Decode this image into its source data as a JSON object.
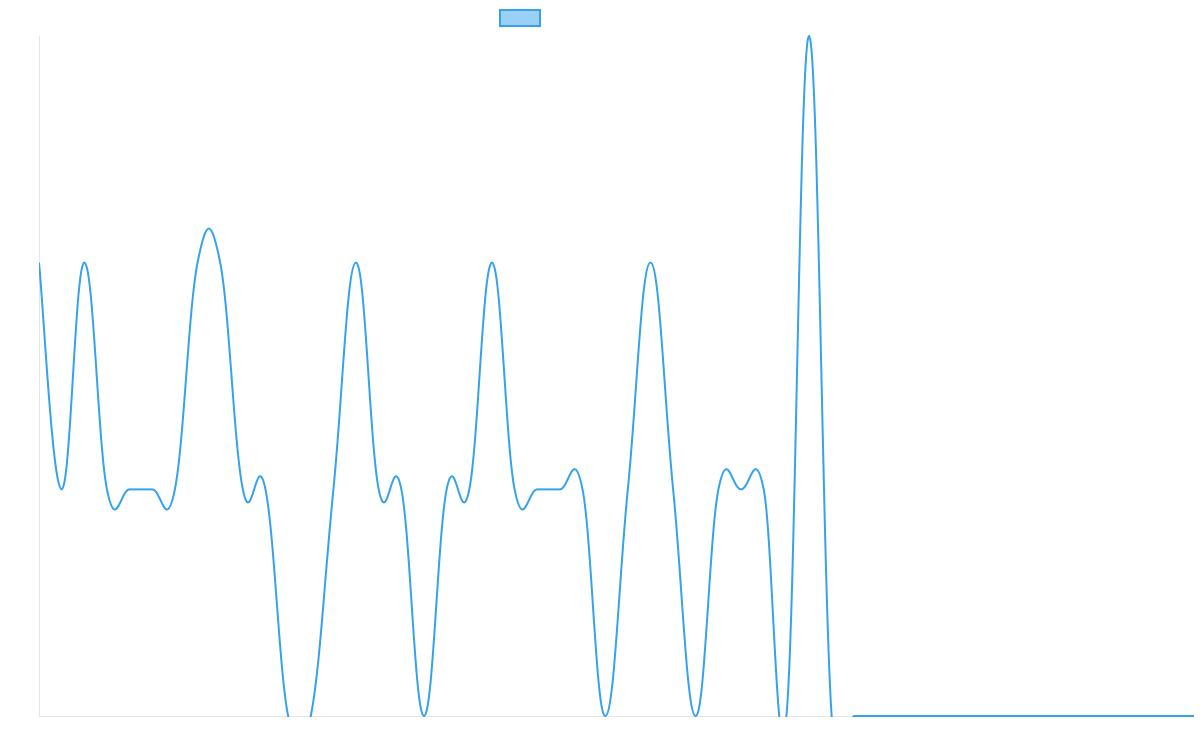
{
  "chart_data": {
    "type": "line",
    "series": [
      {
        "color": "#36a2eb",
        "legend_fill": "#9ad0f5",
        "values": [
          2,
          1,
          2,
          1,
          1,
          1,
          1,
          2,
          2,
          1,
          1,
          0,
          0,
          1,
          2,
          1,
          1,
          0,
          1,
          1,
          2,
          1,
          1,
          1,
          1,
          0,
          1,
          2,
          1,
          0,
          1,
          1,
          1,
          0,
          3,
          0,
          0,
          0,
          0,
          0,
          0,
          0,
          0,
          0,
          0,
          0,
          0,
          0,
          0,
          0,
          0,
          0
        ]
      }
    ],
    "ylim": [
      0,
      3
    ],
    "legend": "top"
  }
}
